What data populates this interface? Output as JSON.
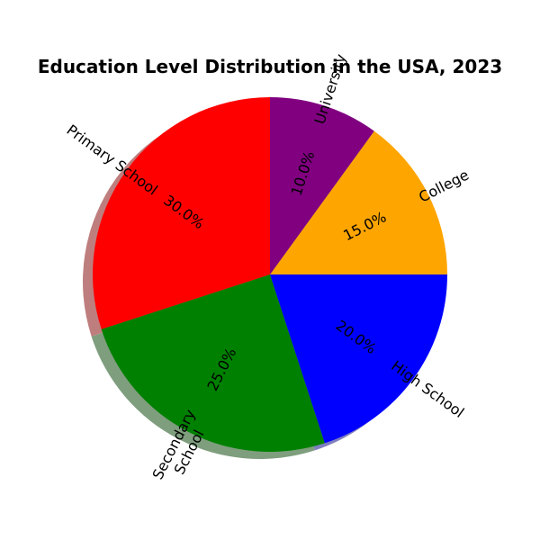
{
  "chart_data": {
    "type": "pie",
    "title": "Education Level Distribution in the USA, 2023",
    "categories": [
      "Primary School",
      "Secondary School",
      "High School",
      "College",
      "University"
    ],
    "values": [
      30.0,
      25.0,
      20.0,
      15.0,
      10.0
    ],
    "value_labels": [
      "30.0%",
      "25.0%",
      "20.0%",
      "15.0%",
      "10.0%"
    ],
    "label_lines": [
      [
        "Primary School"
      ],
      [
        "Secondary",
        "School"
      ],
      [
        "High School"
      ],
      [
        "College"
      ],
      [
        "University"
      ]
    ],
    "colors": [
      "#ff0000",
      "#008000",
      "#0000ff",
      "#ffa500",
      "#800080"
    ],
    "start_angle_deg": 90,
    "direction": "counterclockwise",
    "shadow": true,
    "rotated_labels": true,
    "legend": "none"
  }
}
